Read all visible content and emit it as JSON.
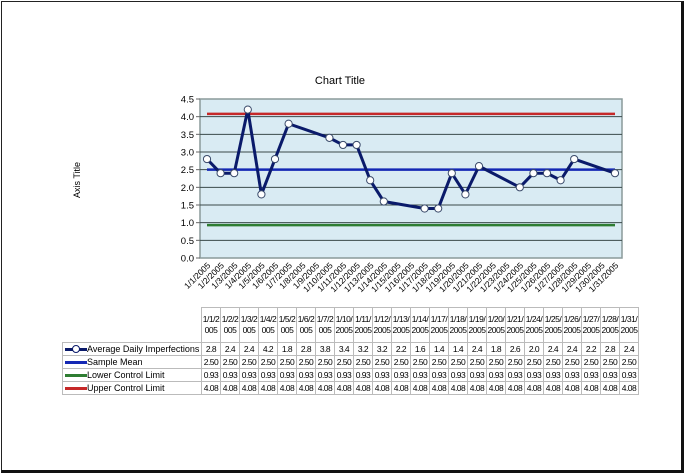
{
  "chart": {
    "title": "Chart Title",
    "y_axis_title": "Axis Title",
    "y_ticks": [
      "0.0",
      "0.5",
      "1.0",
      "1.5",
      "2.0",
      "2.5",
      "3.0",
      "3.5",
      "4.0",
      "4.5"
    ],
    "x_tick_labels": [
      "1/1/2005",
      "1/2/2005",
      "1/3/2005",
      "1/4/2005",
      "1/5/2005",
      "1/6/2005",
      "1/7/2005",
      "1/8/2005",
      "1/9/2005",
      "1/10/2005",
      "1/11/2005",
      "1/12/2005",
      "1/13/2005",
      "1/14/2005",
      "1/15/2005",
      "1/16/2005",
      "1/17/2005",
      "1/18/2005",
      "1/19/2005",
      "1/20/2005",
      "1/21/2005",
      "1/22/2005",
      "1/23/2005",
      "1/24/2005",
      "1/25/2005",
      "1/26/2005",
      "1/27/2005",
      "1/28/2005",
      "1/29/2005",
      "1/30/2005",
      "1/31/2005"
    ],
    "colors": {
      "plot_bg": "#d9ebf3",
      "gridline": "#3a4a4a",
      "average": "#0a1a6a",
      "mean": "#1428b4",
      "lcl": "#2e7d32",
      "ucl": "#c62828"
    }
  },
  "table": {
    "headers": [
      "1/1/2005",
      "1/2/2005",
      "1/3/2005",
      "1/4/2005",
      "1/5/2005",
      "1/6/2005",
      "1/7/2005",
      "1/10/2005",
      "1/11/2005",
      "1/12/2005",
      "1/13/2005",
      "1/14/2005",
      "1/17/2005",
      "1/18/2005",
      "1/19/2005",
      "1/20/2005",
      "1/21/2005",
      "1/24/2005",
      "1/25/2005",
      "1/26/2005",
      "1/27/2005",
      "1/28/2005",
      "1/31/2005"
    ],
    "rows": [
      {
        "label": "Average Daily Imperfections",
        "values": [
          "2.8",
          "2.4",
          "2.4",
          "4.2",
          "1.8",
          "2.8",
          "3.8",
          "3.4",
          "3.2",
          "3.2",
          "2.2",
          "1.6",
          "1.4",
          "1.4",
          "2.4",
          "1.8",
          "2.6",
          "2.0",
          "2.4",
          "2.4",
          "2.2",
          "2.8",
          "2.4"
        ]
      },
      {
        "label": "Sample Mean",
        "values": [
          "2.50",
          "2.50",
          "2.50",
          "2.50",
          "2.50",
          "2.50",
          "2.50",
          "2.50",
          "2.50",
          "2.50",
          "2.50",
          "2.50",
          "2.50",
          "2.50",
          "2.50",
          "2.50",
          "2.50",
          "2.50",
          "2.50",
          "2.50",
          "2.50",
          "2.50",
          "2.50"
        ]
      },
      {
        "label": "Lower Control Limit",
        "values": [
          "0.93",
          "0.93",
          "0.93",
          "0.93",
          "0.93",
          "0.93",
          "0.93",
          "0.93",
          "0.93",
          "0.93",
          "0.93",
          "0.93",
          "0.93",
          "0.93",
          "0.93",
          "0.93",
          "0.93",
          "0.93",
          "0.93",
          "0.93",
          "0.93",
          "0.93",
          "0.93"
        ]
      },
      {
        "label": "Upper Control Limit",
        "values": [
          "4.08",
          "4.08",
          "4.08",
          "4.08",
          "4.08",
          "4.08",
          "4.08",
          "4.08",
          "4.08",
          "4.08",
          "4.08",
          "4.08",
          "4.08",
          "4.08",
          "4.08",
          "4.08",
          "4.08",
          "4.08",
          "4.08",
          "4.08",
          "4.08",
          "4.08",
          "4.08"
        ]
      }
    ]
  },
  "chart_data": {
    "type": "line",
    "title": "Chart Title",
    "xlabel": "",
    "ylabel": "Axis Title",
    "ylim": [
      0,
      4.5
    ],
    "grid": true,
    "legend_position": "data table",
    "x": [
      "1/1/2005",
      "1/2/2005",
      "1/3/2005",
      "1/4/2005",
      "1/5/2005",
      "1/6/2005",
      "1/7/2005",
      "1/10/2005",
      "1/11/2005",
      "1/12/2005",
      "1/13/2005",
      "1/14/2005",
      "1/17/2005",
      "1/18/2005",
      "1/19/2005",
      "1/20/2005",
      "1/21/2005",
      "1/24/2005",
      "1/25/2005",
      "1/26/2005",
      "1/27/2005",
      "1/28/2005",
      "1/31/2005"
    ],
    "x_day": [
      1,
      2,
      3,
      4,
      5,
      6,
      7,
      10,
      11,
      12,
      13,
      14,
      17,
      18,
      19,
      20,
      21,
      24,
      25,
      26,
      27,
      28,
      31
    ],
    "series": [
      {
        "name": "Average Daily Imperfections",
        "values": [
          2.8,
          2.4,
          2.4,
          4.2,
          1.8,
          2.8,
          3.8,
          3.4,
          3.2,
          3.2,
          2.2,
          1.6,
          1.4,
          1.4,
          2.4,
          1.8,
          2.6,
          2.0,
          2.4,
          2.4,
          2.2,
          2.8,
          2.4
        ]
      },
      {
        "name": "Sample Mean",
        "values": [
          2.5,
          2.5,
          2.5,
          2.5,
          2.5,
          2.5,
          2.5,
          2.5,
          2.5,
          2.5,
          2.5,
          2.5,
          2.5,
          2.5,
          2.5,
          2.5,
          2.5,
          2.5,
          2.5,
          2.5,
          2.5,
          2.5,
          2.5
        ]
      },
      {
        "name": "Lower Control Limit",
        "values": [
          0.93,
          0.93,
          0.93,
          0.93,
          0.93,
          0.93,
          0.93,
          0.93,
          0.93,
          0.93,
          0.93,
          0.93,
          0.93,
          0.93,
          0.93,
          0.93,
          0.93,
          0.93,
          0.93,
          0.93,
          0.93,
          0.93,
          0.93
        ]
      },
      {
        "name": "Upper Control Limit",
        "values": [
          4.08,
          4.08,
          4.08,
          4.08,
          4.08,
          4.08,
          4.08,
          4.08,
          4.08,
          4.08,
          4.08,
          4.08,
          4.08,
          4.08,
          4.08,
          4.08,
          4.08,
          4.08,
          4.08,
          4.08,
          4.08,
          4.08,
          4.08
        ]
      }
    ]
  }
}
